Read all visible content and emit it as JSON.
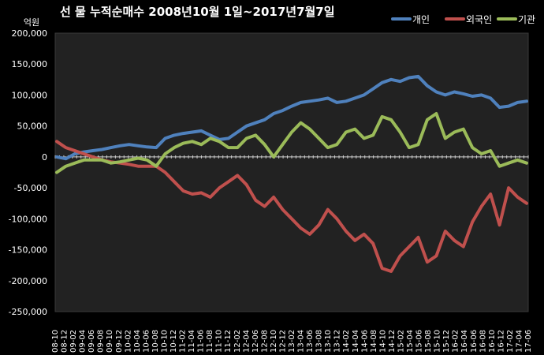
{
  "chart_data": {
    "type": "line",
    "title": "선 물 누적순매수 2008년10월 1일~2017년7월7일",
    "ylabel": "억원",
    "ylim": [
      -250000,
      200000
    ],
    "yticks": [
      "200,000",
      "150,000",
      "100,000",
      "50,000",
      "0",
      "-50,000",
      "-100,000",
      "-150,000",
      "-200,000",
      "-250,000"
    ],
    "ytick_values": [
      200000,
      150000,
      100000,
      50000,
      0,
      -50000,
      -100000,
      -150000,
      -200000,
      -250000
    ],
    "x_ticks": [
      "08-10",
      "08-12",
      "09-02",
      "09-04",
      "09-06",
      "09-08",
      "09-10",
      "09-12",
      "10-02",
      "10-04",
      "10-06",
      "10-08",
      "10-10",
      "10-12",
      "11-02",
      "11-04",
      "11-06",
      "11-08",
      "11-10",
      "11-12",
      "12-02",
      "12-04",
      "12-06",
      "12-08",
      "12-10",
      "12-12",
      "13-02",
      "13-04",
      "13-06",
      "13-08",
      "13-10",
      "13-12",
      "14-02",
      "14-04",
      "14-06",
      "14-08",
      "14-10",
      "14-12",
      "15-02",
      "15-04",
      "15-06",
      "15-08",
      "15-10",
      "15-12",
      "16-02",
      "16-04",
      "16-06",
      "16-08",
      "16-10",
      "16-12",
      "17-02",
      "17-04",
      "17-06"
    ],
    "legend_position": "top-right",
    "grid": false,
    "series": [
      {
        "name": "개인",
        "color": "#4f81bd",
        "values": [
          0,
          -3000,
          5000,
          8000,
          10000,
          12000,
          15000,
          18000,
          20000,
          18000,
          16000,
          15000,
          30000,
          35000,
          38000,
          40000,
          42000,
          35000,
          28000,
          30000,
          40000,
          50000,
          55000,
          60000,
          70000,
          75000,
          82000,
          88000,
          90000,
          92000,
          95000,
          88000,
          90000,
          95000,
          100000,
          110000,
          120000,
          125000,
          122000,
          128000,
          130000,
          115000,
          105000,
          100000,
          105000,
          102000,
          98000,
          100000,
          95000,
          80000,
          82000,
          88000,
          90000
        ]
      },
      {
        "name": "외국인",
        "color": "#c0504d",
        "values": [
          25000,
          15000,
          10000,
          5000,
          0,
          -5000,
          -8000,
          -10000,
          -12000,
          -15000,
          -15000,
          -15000,
          -25000,
          -40000,
          -55000,
          -60000,
          -58000,
          -65000,
          -50000,
          -40000,
          -30000,
          -45000,
          -70000,
          -80000,
          -65000,
          -85000,
          -100000,
          -115000,
          -125000,
          -110000,
          -85000,
          -100000,
          -120000,
          -135000,
          -125000,
          -140000,
          -180000,
          -185000,
          -160000,
          -145000,
          -130000,
          -170000,
          -160000,
          -120000,
          -135000,
          -145000,
          -105000,
          -80000,
          -60000,
          -110000,
          -50000,
          -65000,
          -75000
        ]
      },
      {
        "name": "기관",
        "color": "#9bbb59",
        "values": [
          -25000,
          -15000,
          -10000,
          -5000,
          -5000,
          -5000,
          -10000,
          -8000,
          -5000,
          -2000,
          -5000,
          -15000,
          5000,
          15000,
          22000,
          25000,
          20000,
          30000,
          25000,
          15000,
          15000,
          30000,
          35000,
          20000,
          0,
          20000,
          40000,
          55000,
          45000,
          30000,
          15000,
          20000,
          40000,
          45000,
          30000,
          35000,
          65000,
          60000,
          40000,
          15000,
          20000,
          60000,
          70000,
          30000,
          40000,
          45000,
          15000,
          5000,
          10000,
          -15000,
          -10000,
          -5000,
          -10000
        ]
      }
    ]
  }
}
